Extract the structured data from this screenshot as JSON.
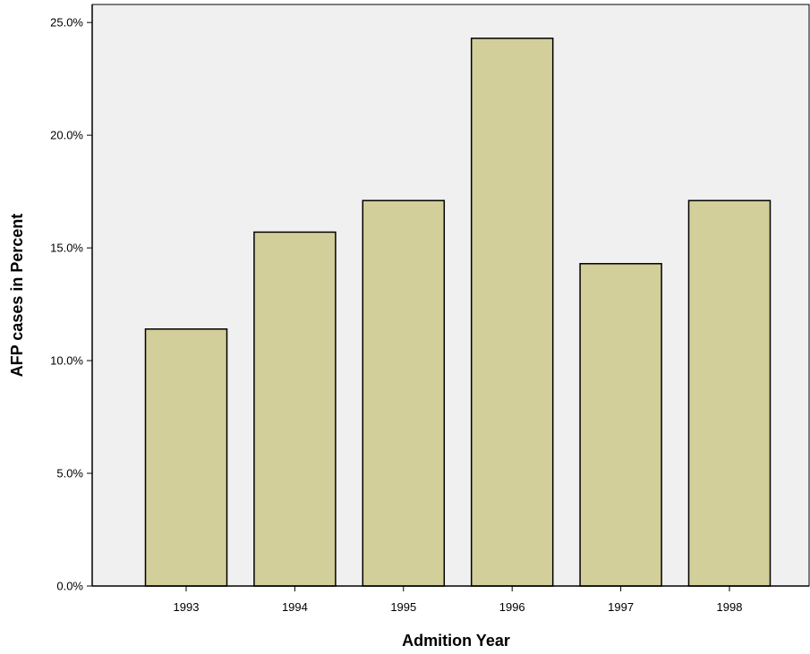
{
  "chart_data": {
    "type": "bar",
    "title": "",
    "xlabel": "Admition Year",
    "ylabel": "AFP cases in Percent",
    "categories": [
      "1993",
      "1994",
      "1995",
      "1996",
      "1997",
      "1998"
    ],
    "values": [
      11.4,
      15.7,
      17.1,
      24.3,
      14.3,
      17.1
    ],
    "ylim": [
      0,
      25.8
    ],
    "yticks": [
      0,
      5,
      10,
      15,
      20,
      25
    ],
    "ytick_labels": [
      "0.0%",
      "5.0%",
      "10.0%",
      "15.0%",
      "20.0%",
      "25.0%"
    ],
    "grid": false,
    "legend": "none",
    "colors": {
      "plot_background": "#f0f0f0",
      "bar_fill": "#d3cf9a",
      "bar_stroke": "#000000"
    }
  }
}
